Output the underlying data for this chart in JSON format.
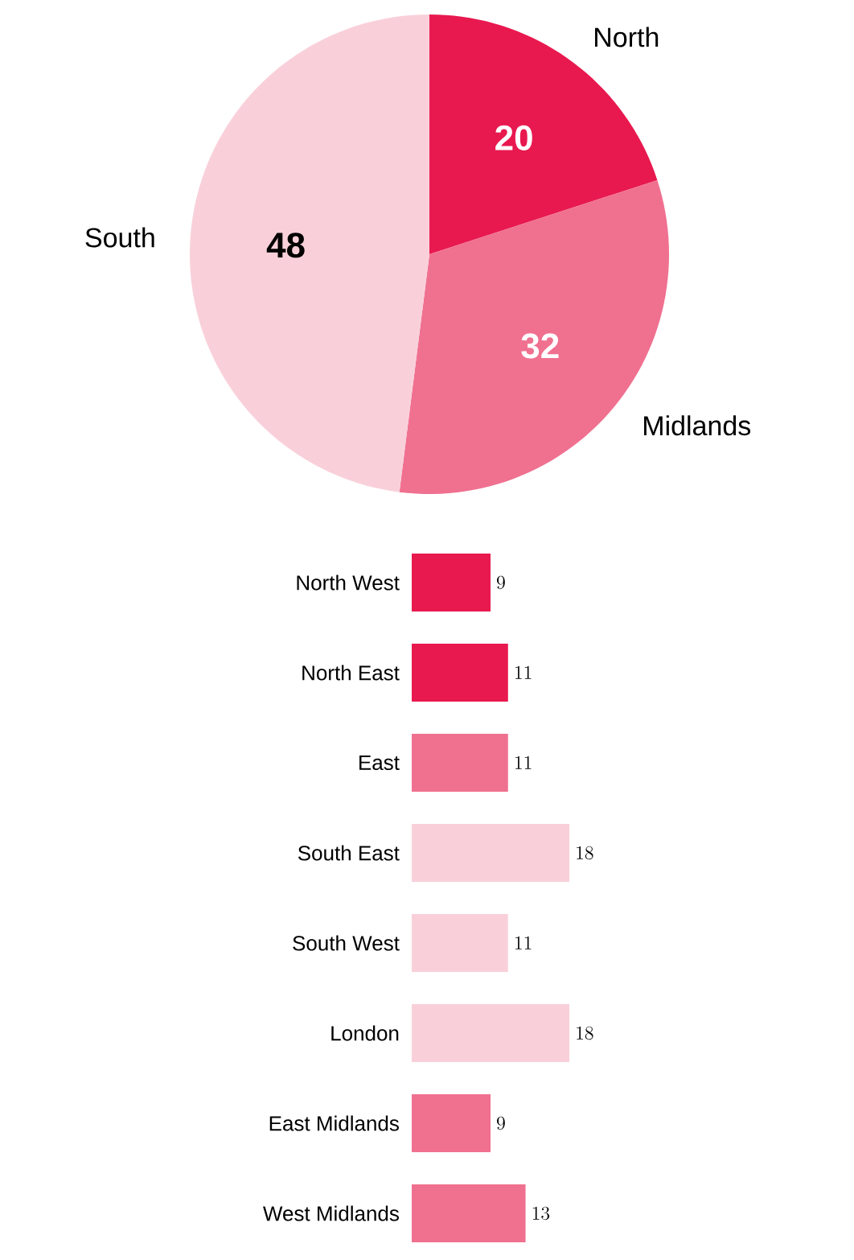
{
  "chart_data": [
    {
      "type": "pie",
      "categories": [
        "North",
        "Midlands",
        "South"
      ],
      "values": [
        20,
        32,
        48
      ],
      "colors": [
        "#e8194f",
        "#f07090",
        "#f9d0da"
      ],
      "data_labels": true
    },
    {
      "type": "bar",
      "orientation": "horizontal",
      "categories": [
        "North West",
        "North East",
        "East",
        "South East",
        "South West",
        "London",
        "East Midlands",
        "West Midlands"
      ],
      "values": [
        9,
        11,
        11,
        18,
        11,
        18,
        9,
        13
      ],
      "colors": [
        "#e8194f",
        "#e8194f",
        "#f07090",
        "#f9d0da",
        "#f9d0da",
        "#f9d0da",
        "#f07090",
        "#f07090"
      ],
      "data_labels": true
    }
  ]
}
